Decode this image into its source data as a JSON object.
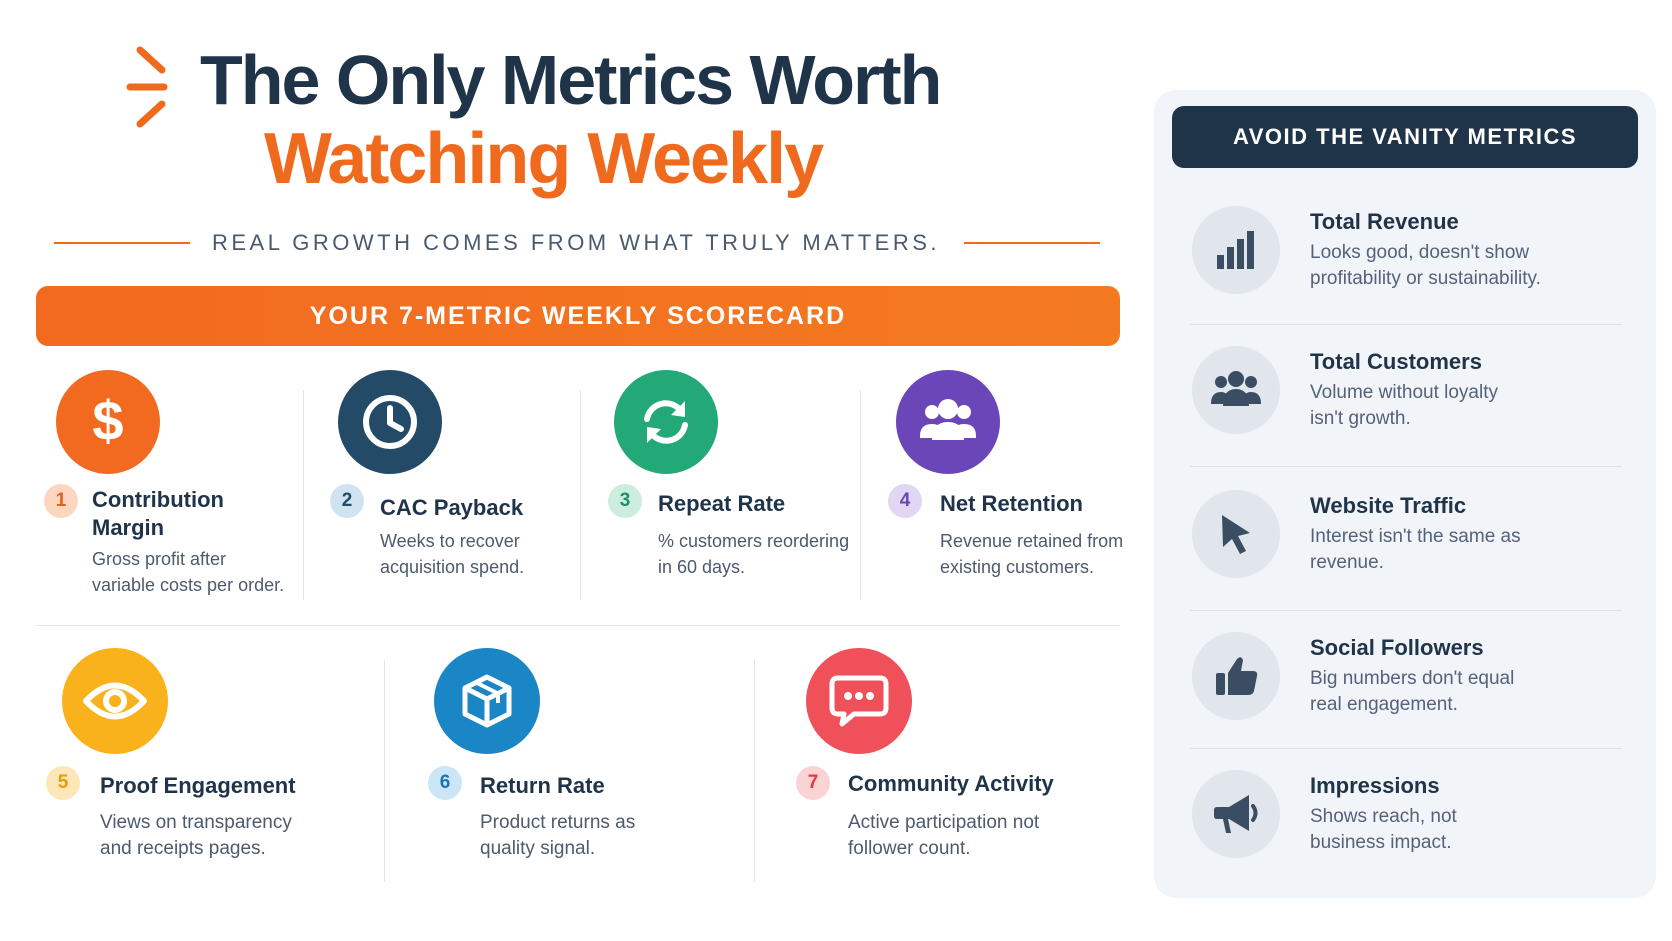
{
  "title": {
    "line1": "The Only Metrics Worth",
    "line2": "Watching Weekly",
    "subtitle": "REAL GROWTH COMES FROM WHAT TRULY MATTERS."
  },
  "scorecard": {
    "banner": "YOUR 7-METRIC WEEKLY SCORECARD",
    "metrics": [
      {
        "num": "1",
        "name": "Contribution Margin",
        "desc": "Gross profit after variable costs per order.",
        "icon": "dollar-icon",
        "color": "#f26a1f"
      },
      {
        "num": "2",
        "name": "CAC Payback",
        "desc": "Weeks to recover acquisition spend.",
        "icon": "clock-icon",
        "color": "#234a66"
      },
      {
        "num": "3",
        "name": "Repeat Rate",
        "desc": "% customers reordering in 60 days.",
        "icon": "refresh-icon",
        "color": "#23a877"
      },
      {
        "num": "4",
        "name": "Net Retention",
        "desc": "Revenue retained from existing customers.",
        "icon": "users-icon",
        "color": "#6b46b8"
      },
      {
        "num": "5",
        "name": "Proof Engagement",
        "desc": "Views on transparency and receipts pages.",
        "icon": "eye-icon",
        "color": "#f9b21b"
      },
      {
        "num": "6",
        "name": "Return Rate",
        "desc": "Product returns as quality signal.",
        "icon": "box-icon",
        "color": "#1a86c6"
      },
      {
        "num": "7",
        "name": "Community Activity",
        "desc": "Active participation not follower count.",
        "icon": "chat-icon",
        "color": "#f0505a"
      }
    ]
  },
  "vanity": {
    "banner": "AVOID THE VANITY METRICS",
    "items": [
      {
        "name": "Total Revenue",
        "desc": "Looks good, doesn't show profitability or sustainability.",
        "icon": "bar-chart-icon"
      },
      {
        "name": "Total Customers",
        "desc": "Volume without loyalty isn't growth.",
        "icon": "group-icon"
      },
      {
        "name": "Website Traffic",
        "desc": "Interest isn't the same as revenue.",
        "icon": "cursor-icon"
      },
      {
        "name": "Social Followers",
        "desc": "Big numbers don't equal real engagement.",
        "icon": "thumbs-up-icon"
      },
      {
        "name": "Impressions",
        "desc": "Shows reach, not business impact.",
        "icon": "megaphone-icon"
      }
    ]
  },
  "colors": {
    "accent": "#f06a1e",
    "navy": "#1f3349",
    "panel": "#f1f4f8"
  }
}
